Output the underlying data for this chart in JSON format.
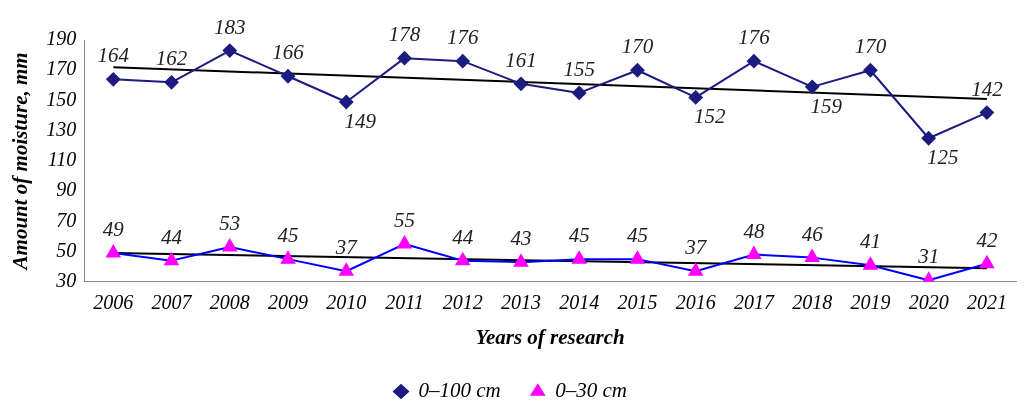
{
  "chart_data": {
    "type": "line",
    "xlabel": "Years of research",
    "ylabel": "Amount of moisture, mm",
    "categories": [
      "2006",
      "2007",
      "2008",
      "2009",
      "2010",
      "2011",
      "2012",
      "2013",
      "2014",
      "2015",
      "2016",
      "2017",
      "2018",
      "2019",
      "2020",
      "2021"
    ],
    "series": [
      {
        "name": "0–100 cm",
        "color": "#1c1c80",
        "marker": "diamond",
        "values": [
          164,
          162,
          183,
          166,
          149,
          178,
          176,
          161,
          155,
          170,
          152,
          176,
          159,
          170,
          125,
          142
        ],
        "value_labels": [
          "164",
          "162",
          "183",
          "166",
          "149",
          "178",
          "176",
          "161",
          "155",
          "170",
          "152",
          "176",
          "159",
          "170",
          "125",
          "142"
        ]
      },
      {
        "name": "0–30 cm",
        "color": "#0000ff",
        "colors": [
          "#ff00ff",
          "#ff00ff",
          "#ff00ff",
          "#ff00ff",
          "#ff00ff",
          "#ff00ff",
          "#ff00ff",
          "#ff00ff",
          "#ff00ff",
          "#ff00ff",
          "#ff00ff",
          "#ff00ff",
          "#ff00ff",
          "#ff00ff",
          "#ff00ff",
          "#ff00ff"
        ],
        "marker": "triangle",
        "values": [
          49,
          44,
          53,
          45,
          37,
          55,
          44,
          43,
          45,
          45,
          37,
          48,
          46,
          41,
          31,
          42
        ],
        "value_labels": [
          "49",
          "44",
          "53",
          "45",
          "37",
          "55",
          "44",
          "43",
          "45",
          "45",
          "37",
          "48",
          "46",
          "41",
          "31",
          "42"
        ]
      },
      {
        "type": "line",
        "color": "#000000",
        "marker": "none",
        "values": [
          172,
          null,
          null,
          null,
          null,
          null,
          null,
          null,
          null,
          null,
          null,
          null,
          null,
          null,
          null,
          151
        ]
      },
      {
        "type": "line",
        "color": "#000000",
        "marker": "none",
        "values": [
          49,
          null,
          null,
          null,
          null,
          null,
          null,
          null,
          null,
          null,
          null,
          null,
          null,
          null,
          null,
          39
        ]
      }
    ],
    "ylim": [
      30,
      190
    ],
    "yticks": [
      30,
      50,
      70,
      90,
      110,
      130,
      150,
      170,
      190
    ],
    "grid": false,
    "legend": "bottom"
  }
}
